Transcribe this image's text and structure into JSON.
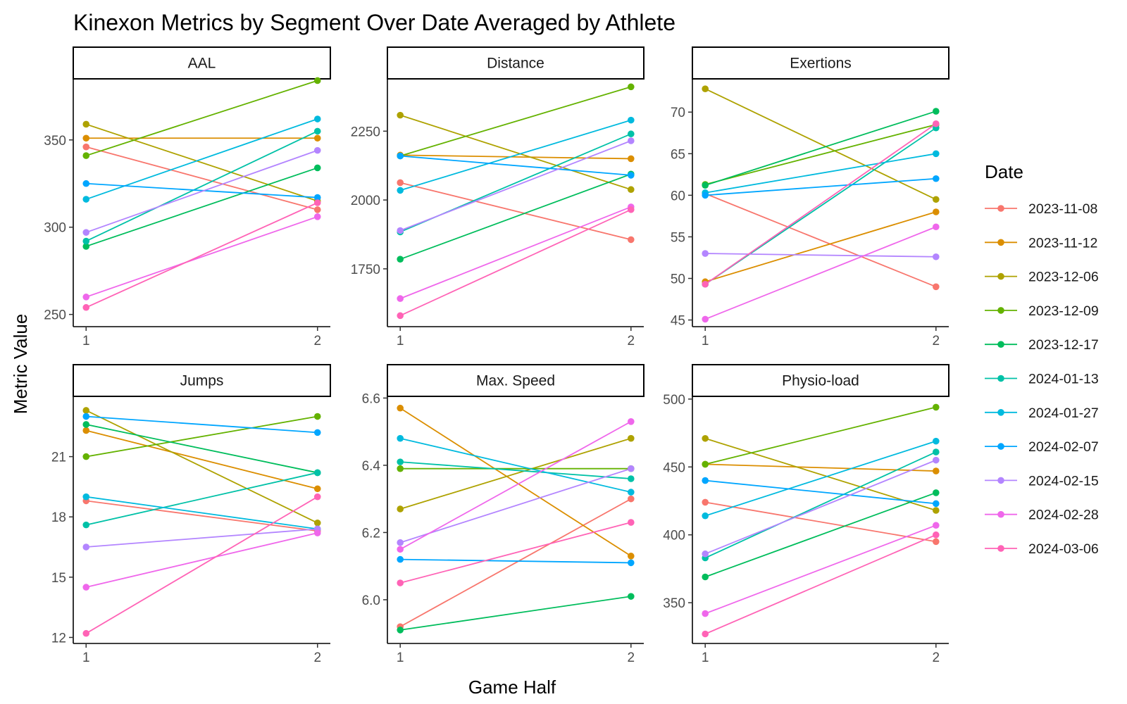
{
  "chart_data": {
    "type": "line",
    "title": "Kinexon Metrics by Segment Over Date Averaged by Athlete",
    "xlabel": "Game Half",
    "ylabel": "Metric Value",
    "x": [
      1,
      2
    ],
    "grid": false,
    "legend": {
      "title": "Date",
      "position": "right",
      "entries": [
        "2023-11-08",
        "2023-11-12",
        "2023-12-06",
        "2023-12-09",
        "2023-12-17",
        "2024-01-13",
        "2024-01-27",
        "2024-02-07",
        "2024-02-15",
        "2024-02-28",
        "2024-03-06"
      ],
      "colors": [
        "#F8766D",
        "#DB8E00",
        "#AEA200",
        "#64B200",
        "#00BD5C",
        "#00C1A7",
        "#00BADE",
        "#00A6FF",
        "#B385FF",
        "#EF67EB",
        "#FF63B6"
      ]
    },
    "panels": [
      {
        "name": "AAL",
        "yticks": [
          250,
          300,
          350
        ],
        "ylim": [
          243,
          385
        ],
        "series": [
          {
            "name": "2023-11-08",
            "values": [
              346,
              310
            ]
          },
          {
            "name": "2023-11-12",
            "values": [
              351,
              351
            ]
          },
          {
            "name": "2023-12-06",
            "values": [
              359,
              315
            ]
          },
          {
            "name": "2023-12-09",
            "values": [
              341,
              384
            ]
          },
          {
            "name": "2023-12-17",
            "values": [
              289,
              334
            ]
          },
          {
            "name": "2024-01-13",
            "values": [
              292,
              355
            ]
          },
          {
            "name": "2024-01-27",
            "values": [
              316,
              362
            ]
          },
          {
            "name": "2024-02-07",
            "values": [
              325,
              317
            ]
          },
          {
            "name": "2024-02-15",
            "values": [
              297,
              344
            ]
          },
          {
            "name": "2024-02-28",
            "values": [
              260,
              306
            ]
          },
          {
            "name": "2024-03-06",
            "values": [
              254,
              314
            ]
          }
        ]
      },
      {
        "name": "Distance",
        "yticks": [
          1750,
          2000,
          2250
        ],
        "ylim": [
          1540,
          2440
        ],
        "series": [
          {
            "name": "2023-11-08",
            "values": [
              2063,
              1856
            ]
          },
          {
            "name": "2023-11-12",
            "values": [
              2163,
              2150
            ]
          },
          {
            "name": "2023-12-06",
            "values": [
              2308,
              2038
            ]
          },
          {
            "name": "2023-12-09",
            "values": [
              2160,
              2411
            ]
          },
          {
            "name": "2023-12-17",
            "values": [
              1785,
              2094
            ]
          },
          {
            "name": "2024-01-13",
            "values": [
              1884,
              2240
            ]
          },
          {
            "name": "2024-01-27",
            "values": [
              2035,
              2290
            ]
          },
          {
            "name": "2024-02-07",
            "values": [
              2160,
              2090
            ]
          },
          {
            "name": "2024-02-15",
            "values": [
              1889,
              2215
            ]
          },
          {
            "name": "2024-02-28",
            "values": [
              1642,
              1975
            ]
          },
          {
            "name": "2024-03-06",
            "values": [
              1580,
              1965
            ]
          }
        ]
      },
      {
        "name": "Exertions",
        "yticks": [
          45,
          50,
          55,
          60,
          65,
          70
        ],
        "ylim": [
          44.2,
          74.0
        ],
        "series": [
          {
            "name": "2023-11-08",
            "values": [
              60.2,
              49.0
            ]
          },
          {
            "name": "2023-11-12",
            "values": [
              49.6,
              58.0
            ]
          },
          {
            "name": "2023-12-06",
            "values": [
              72.8,
              59.5
            ]
          },
          {
            "name": "2023-12-09",
            "values": [
              61.3,
              68.5
            ]
          },
          {
            "name": "2023-12-17",
            "values": [
              61.2,
              70.1
            ]
          },
          {
            "name": "2024-01-13",
            "values": [
              49.3,
              68.1
            ]
          },
          {
            "name": "2024-01-27",
            "values": [
              60.3,
              65.0
            ]
          },
          {
            "name": "2024-02-07",
            "values": [
              60.0,
              62.0
            ]
          },
          {
            "name": "2024-02-15",
            "values": [
              53.0,
              52.6
            ]
          },
          {
            "name": "2024-02-28",
            "values": [
              45.1,
              56.2
            ]
          },
          {
            "name": "2024-03-06",
            "values": [
              49.3,
              68.6
            ]
          }
        ]
      },
      {
        "name": "Jumps",
        "yticks": [
          12,
          15,
          18,
          21
        ],
        "ylim": [
          11.7,
          24.0
        ],
        "series": [
          {
            "name": "2023-11-08",
            "values": [
              18.8,
              17.3
            ]
          },
          {
            "name": "2023-11-12",
            "values": [
              22.3,
              19.4
            ]
          },
          {
            "name": "2023-12-06",
            "values": [
              23.3,
              17.7
            ]
          },
          {
            "name": "2023-12-09",
            "values": [
              21.0,
              23.0
            ]
          },
          {
            "name": "2023-12-17",
            "values": [
              22.6,
              20.2
            ]
          },
          {
            "name": "2024-01-13",
            "values": [
              17.6,
              20.2
            ]
          },
          {
            "name": "2024-01-27",
            "values": [
              19.0,
              17.4
            ]
          },
          {
            "name": "2024-02-07",
            "values": [
              23.0,
              22.2
            ]
          },
          {
            "name": "2024-02-15",
            "values": [
              16.5,
              17.4
            ]
          },
          {
            "name": "2024-02-28",
            "values": [
              14.5,
              17.2
            ]
          },
          {
            "name": "2024-03-06",
            "values": [
              12.2,
              19.0
            ]
          }
        ]
      },
      {
        "name": "Max. Speed",
        "yticks": [
          6.0,
          6.2,
          6.4,
          6.6
        ],
        "ylim": [
          5.87,
          6.605
        ],
        "series": [
          {
            "name": "2023-11-08",
            "values": [
              5.92,
              6.3
            ]
          },
          {
            "name": "2023-11-12",
            "values": [
              6.57,
              6.13
            ]
          },
          {
            "name": "2023-12-06",
            "values": [
              6.27,
              6.48
            ]
          },
          {
            "name": "2023-12-09",
            "values": [
              6.39,
              6.39
            ]
          },
          {
            "name": "2023-12-17",
            "values": [
              5.91,
              6.01
            ]
          },
          {
            "name": "2024-01-13",
            "values": [
              6.41,
              6.36
            ]
          },
          {
            "name": "2024-01-27",
            "values": [
              6.48,
              6.32
            ]
          },
          {
            "name": "2024-02-07",
            "values": [
              6.12,
              6.11
            ]
          },
          {
            "name": "2024-02-15",
            "values": [
              6.17,
              6.39
            ]
          },
          {
            "name": "2024-02-28",
            "values": [
              6.15,
              6.53
            ]
          },
          {
            "name": "2024-03-06",
            "values": [
              6.05,
              6.23
            ]
          }
        ]
      },
      {
        "name": "Physio-load",
        "yticks": [
          350,
          400,
          450,
          500
        ],
        "ylim": [
          320,
          502
        ],
        "series": [
          {
            "name": "2023-11-08",
            "values": [
              424,
              395
            ]
          },
          {
            "name": "2023-11-12",
            "values": [
              452,
              447
            ]
          },
          {
            "name": "2023-12-06",
            "values": [
              471,
              418
            ]
          },
          {
            "name": "2023-12-09",
            "values": [
              452,
              494
            ]
          },
          {
            "name": "2023-12-17",
            "values": [
              369,
              431
            ]
          },
          {
            "name": "2024-01-13",
            "values": [
              383,
              461
            ]
          },
          {
            "name": "2024-01-27",
            "values": [
              414,
              469
            ]
          },
          {
            "name": "2024-02-07",
            "values": [
              440,
              423
            ]
          },
          {
            "name": "2024-02-15",
            "values": [
              386,
              455
            ]
          },
          {
            "name": "2024-02-28",
            "values": [
              342,
              407
            ]
          },
          {
            "name": "2024-03-06",
            "values": [
              327,
              400
            ]
          }
        ]
      }
    ]
  }
}
